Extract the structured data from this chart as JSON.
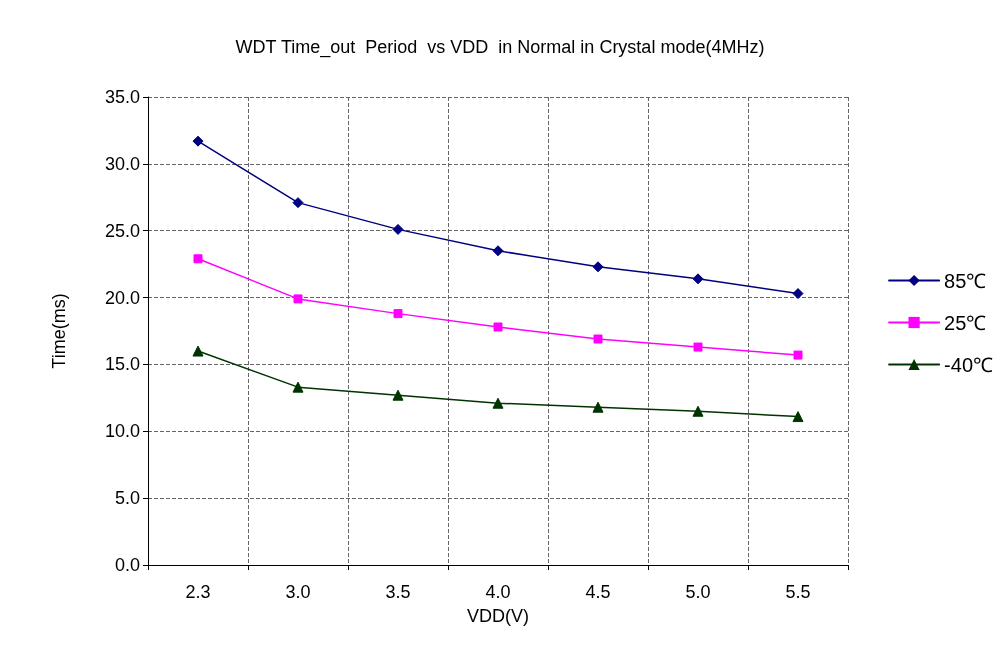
{
  "chart_data": {
    "type": "line",
    "title": "WDT Time_out  Period  vs VDD  in Normal in Crystal mode(4MHz)",
    "xlabel": "VDD(V)",
    "ylabel": "Time(ms)",
    "categories": [
      "2.3",
      "3.0",
      "3.5",
      "4.0",
      "4.5",
      "5.0",
      "5.5"
    ],
    "series": [
      {
        "name": "85℃",
        "color": "#000080",
        "marker": "diamond",
        "values": [
          31.7,
          27.1,
          25.1,
          23.5,
          22.3,
          21.4,
          20.3
        ]
      },
      {
        "name": "25℃",
        "color": "#ff00ff",
        "marker": "square",
        "values": [
          22.9,
          19.9,
          18.8,
          17.8,
          16.9,
          16.3,
          15.7
        ]
      },
      {
        "name": "-40℃",
        "color": "#003300",
        "marker": "triangle",
        "values": [
          16.0,
          13.3,
          12.7,
          12.1,
          11.8,
          11.5,
          11.1
        ]
      }
    ],
    "ylim": [
      0,
      35
    ],
    "yticks": [
      {
        "value": 0,
        "label": "0.0"
      },
      {
        "value": 5,
        "label": "5.0"
      },
      {
        "value": 10,
        "label": "10.0"
      },
      {
        "value": 15,
        "label": "15.0"
      },
      {
        "value": 20,
        "label": "20.0"
      },
      {
        "value": 25,
        "label": "25.0"
      },
      {
        "value": 30,
        "label": "30.0"
      },
      {
        "value": 35,
        "label": "35.0"
      }
    ],
    "grid": true,
    "legend": "right",
    "line_style": "solid"
  }
}
